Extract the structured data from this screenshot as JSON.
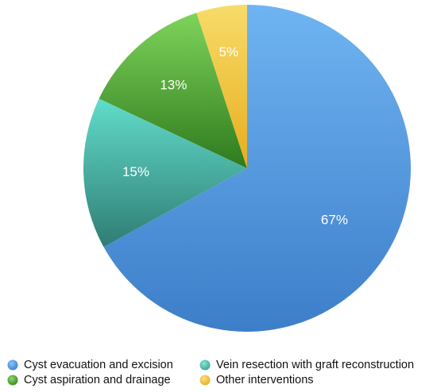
{
  "chart_data": {
    "type": "pie",
    "title": "",
    "slices": [
      {
        "label": "Cyst evacuation and excision",
        "value": 67,
        "display": "67%",
        "color": "#4a90d9"
      },
      {
        "label": "Vein resection with graft reconstruction",
        "value": 15,
        "display": "15%",
        "color": "#4dbfb0"
      },
      {
        "label": "Cyst aspiration and drainage",
        "value": 13,
        "display": "13%",
        "color": "#4e9e34"
      },
      {
        "label": "Other interventions",
        "value": 5,
        "display": "5%",
        "color": "#f2c230"
      }
    ],
    "start_angle": "12 o'clock",
    "direction": "clockwise",
    "legend_position": "bottom",
    "legend_columns": 2
  }
}
